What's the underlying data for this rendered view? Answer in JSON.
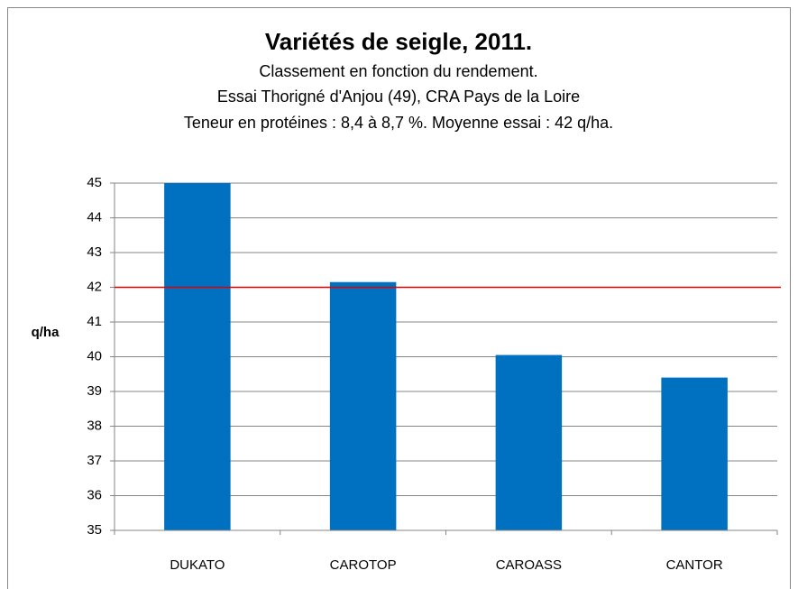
{
  "chart_data": {
    "type": "bar",
    "title": "Variétés de seigle, 2011.",
    "subtitle": [
      "Classement en fonction du rendement.",
      "Essai Thorigné d'Anjou (49), CRA Pays de la Loire",
      "Teneur en protéines : 8,4 à 8,7 %. Moyenne essai : 42 q/ha."
    ],
    "y_label": "q/ha",
    "categories": [
      "DUKATO",
      "CAROTOP",
      "CAROASS",
      "CANTOR"
    ],
    "values": [
      45,
      42.15,
      40.05,
      39.4
    ],
    "color": "#0070c0",
    "reference_line": {
      "value": 42,
      "color": "#e00000"
    },
    "ylim": [
      35,
      45
    ],
    "yticks": [
      35,
      36,
      37,
      38,
      39,
      40,
      41,
      42,
      43,
      44,
      45
    ],
    "grid": true
  }
}
